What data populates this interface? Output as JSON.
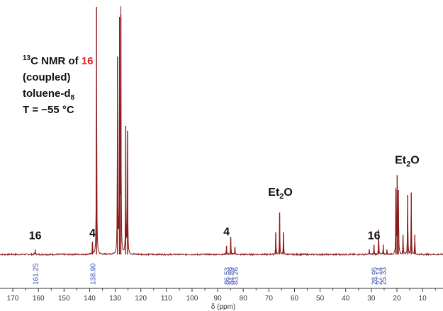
{
  "chart_data": {
    "type": "line",
    "colors": {
      "spectrum": "#8b1a1a",
      "peak_labels": "#3a4fb3",
      "highlight": "#e02020"
    },
    "title_lines": {
      "nucleus_sup": "13",
      "line1_prefix": "C NMR of ",
      "line1_compound": "16",
      "line2": "(coupled)",
      "line3_prefix": "toluene-d",
      "line3_sub": "8",
      "line4": "T = −55 °C"
    },
    "xlabel": "δ (ppm)",
    "xlim": [
      175,
      2
    ],
    "x_ticks": [
      170,
      160,
      150,
      140,
      130,
      120,
      110,
      100,
      90,
      80,
      70,
      60,
      50,
      40,
      30,
      20,
      10
    ],
    "peak_value_labels": [
      "161.25",
      "138.90",
      "86.53",
      "84.89",
      "83.26",
      "28.95",
      "27.14",
      "25.33"
    ],
    "peak_label_positions": [
      161.25,
      138.9,
      86.53,
      84.89,
      83.26,
      28.95,
      27.14,
      25.33
    ],
    "annotations": [
      {
        "text": "16",
        "x": 161.25,
        "level": 0.045
      },
      {
        "text": "4",
        "x": 138.9,
        "level": 0.055
      },
      {
        "text": "4",
        "x": 86.53,
        "level": 0.06
      },
      {
        "text": "16",
        "x": 28.95,
        "level": 0.045
      },
      {
        "text": "Et",
        "sub": "2",
        "after": "O",
        "x": 65.5,
        "level": 0.22
      },
      {
        "text": "Et",
        "sub": "2",
        "after": "O",
        "x": 16.0,
        "level": 0.35
      }
    ],
    "peaks": [
      {
        "x": 161.25,
        "h": 0.02
      },
      {
        "x": 138.9,
        "h": 0.05
      },
      {
        "x": 137.3,
        "h": 1.0
      },
      {
        "x": 129.1,
        "h": 0.8
      },
      {
        "x": 128.3,
        "h": 0.96
      },
      {
        "x": 127.8,
        "h": 0.97
      },
      {
        "x": 125.9,
        "h": 0.52
      },
      {
        "x": 125.2,
        "h": 0.5
      },
      {
        "x": 86.53,
        "h": 0.035
      },
      {
        "x": 84.89,
        "h": 0.07
      },
      {
        "x": 83.26,
        "h": 0.03
      },
      {
        "x": 67.3,
        "h": 0.09
      },
      {
        "x": 65.8,
        "h": 0.17
      },
      {
        "x": 64.3,
        "h": 0.09
      },
      {
        "x": 30.8,
        "h": 0.02
      },
      {
        "x": 28.95,
        "h": 0.04
      },
      {
        "x": 27.14,
        "h": 0.1
      },
      {
        "x": 25.33,
        "h": 0.04
      },
      {
        "x": 23.9,
        "h": 0.02
      },
      {
        "x": 20.4,
        "h": 0.26
      },
      {
        "x": 19.9,
        "h": 0.32
      },
      {
        "x": 19.4,
        "h": 0.26
      },
      {
        "x": 17.6,
        "h": 0.08
      },
      {
        "x": 15.8,
        "h": 0.24
      },
      {
        "x": 14.4,
        "h": 0.25
      },
      {
        "x": 13.0,
        "h": 0.08
      }
    ]
  }
}
